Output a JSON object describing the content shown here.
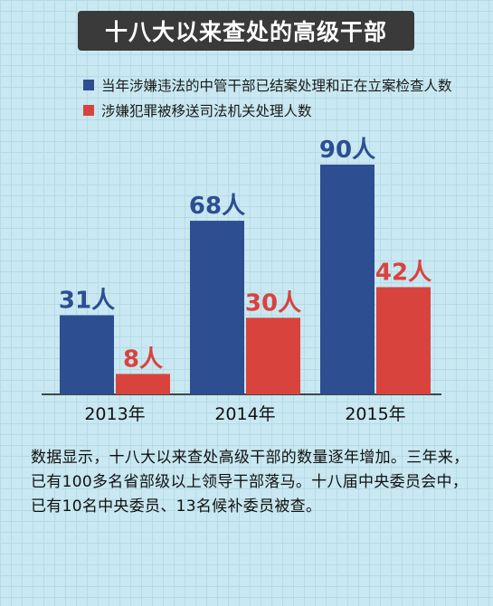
{
  "title": "十八大以来查处的高级干部",
  "body_text": "数据显示，十八大以来查处高级干部的数量逐年增加。三年来，已有100多名省部级以上领导干部落马。十八届中央委员会中，已有10名中央委员、13名候补委员被查。",
  "colors": {
    "series1": "#2d4e91",
    "series2": "#d9433e",
    "title_bg": "#3a3a3a",
    "background": "#c9e8f1"
  },
  "chart_data": {
    "type": "bar",
    "categories": [
      "2013年",
      "2014年",
      "2015年"
    ],
    "series": [
      {
        "name": "当年涉嫌违法的中管干部已结案处理和正在立案检查人数",
        "values": [
          31,
          68,
          90
        ],
        "labels": [
          "31人",
          "68人",
          "90人"
        ]
      },
      {
        "name": "涉嫌犯罪被移送司法机关处理人数",
        "values": [
          8,
          30,
          42
        ],
        "labels": [
          "8人",
          "30人",
          "42人"
        ]
      }
    ],
    "ylim": [
      0,
      90
    ],
    "grid": false,
    "legend_position": "top"
  }
}
